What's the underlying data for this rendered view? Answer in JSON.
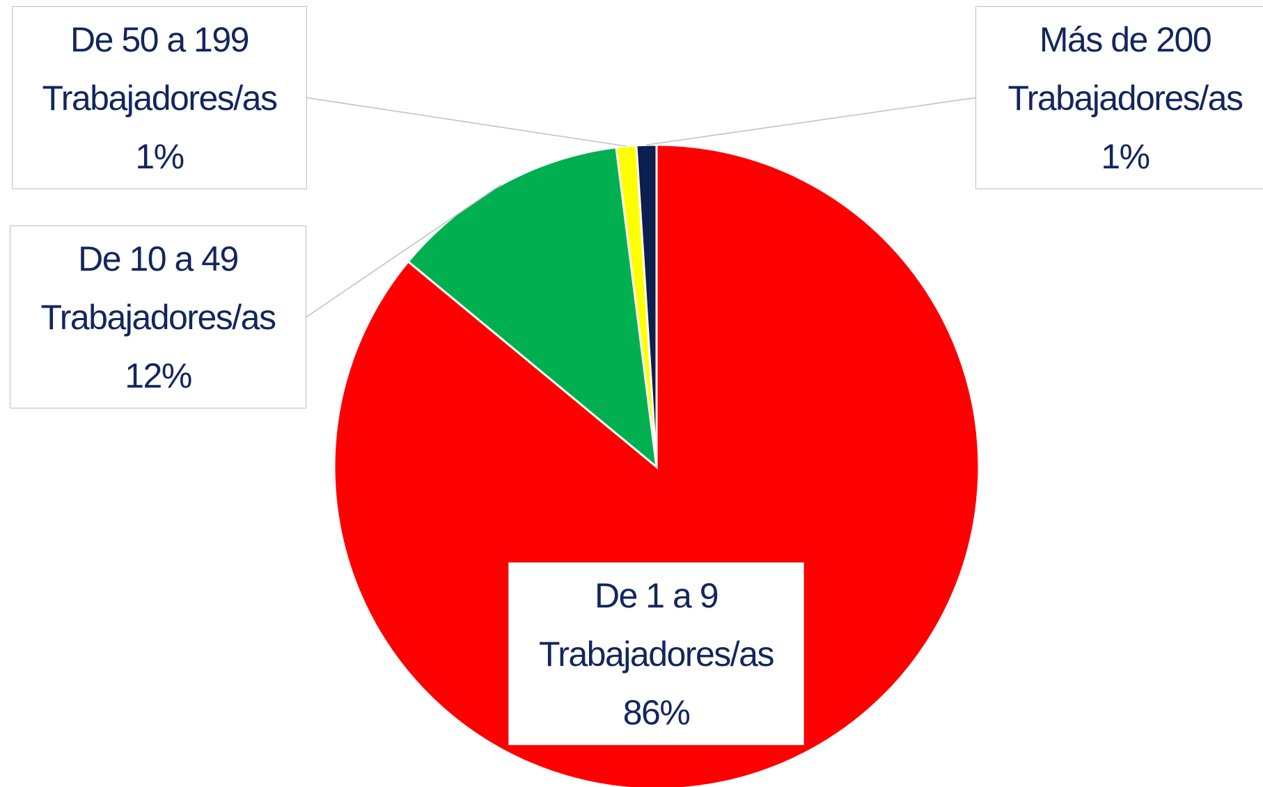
{
  "chart_data": {
    "type": "pie",
    "categories": [
      "De 1 a 9 Trabajadores/as",
      "De 10 a 49 Trabajadores/as",
      "De 50 a 199 Trabajadores/as",
      "Más de 200 Trabajadores/as"
    ],
    "values": [
      86,
      12,
      1,
      1
    ],
    "value_labels": [
      "86%",
      "12%",
      "1%",
      "1%"
    ],
    "colors": [
      "#ff0000",
      "#00b050",
      "#ffff00",
      "#0d1f4f"
    ]
  }
}
